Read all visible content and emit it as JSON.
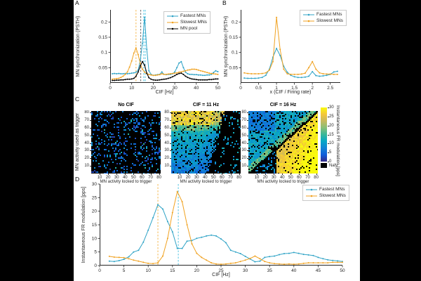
{
  "page_bg": "#000000",
  "figure_bg": "#ffffff",
  "colors": {
    "teal": "#2FA3C6",
    "orange": "#F0A221",
    "pool_black": "#000000",
    "dash_teal": "#55C6E4",
    "dash_orange": "#F6BA55",
    "dash_gray": "#666666",
    "axis": "#262626"
  },
  "colormap": {
    "name": "parula",
    "stops": [
      "#352A87",
      "#0E5CDB",
      "#1283D4",
      "#06A7C6",
      "#38B799",
      "#87BF77",
      "#C7BA5D",
      "#F4C63A",
      "#F9FB0E"
    ]
  },
  "panels": {
    "a": {
      "label": "A"
    },
    "b": {
      "label": "B"
    },
    "c": {
      "label": "C"
    },
    "d": {
      "label": "D"
    }
  },
  "chart_data": [
    {
      "id": "A",
      "type": "line",
      "xlabel": "CIF [Hz]",
      "ylabel": "MN synchronization (PSTH)",
      "xlim": [
        0,
        50.5
      ],
      "ylim": [
        0,
        0.24
      ],
      "xticks": [
        0,
        10,
        20,
        30,
        40,
        50
      ],
      "xtick_labels": [
        "0",
        "10",
        "20",
        "30",
        "40",
        "50"
      ],
      "yticks": [
        0.05,
        0.1,
        0.15,
        0.2
      ],
      "ytick_labels": [
        "0.05",
        "0.1",
        "0.15",
        "0.2"
      ],
      "legend_position": "top-right",
      "vlines": [
        {
          "x": 12,
          "color": "dash_orange"
        },
        {
          "x": 14.2,
          "color": "dash_gray"
        },
        {
          "x": 15.6,
          "color": "dash_teal"
        },
        {
          "x": 16.3,
          "color": "dash_teal"
        }
      ],
      "series": [
        {
          "name": "Fastest MNs",
          "color": "teal",
          "x": [
            1,
            2,
            3,
            4,
            5,
            6,
            7,
            8,
            9,
            10,
            11,
            12,
            13,
            14,
            15,
            16,
            17,
            18,
            19,
            20,
            21,
            22,
            23,
            24,
            25,
            26,
            27,
            28,
            29,
            30,
            31,
            32,
            33,
            34,
            35,
            36,
            37,
            38,
            39,
            40,
            41,
            42,
            43,
            44,
            45,
            46,
            47,
            48,
            49,
            50
          ],
          "y": [
            0.03,
            0.031,
            0.03,
            0.031,
            0.03,
            0.03,
            0.031,
            0.03,
            0.031,
            0.032,
            0.033,
            0.035,
            0.042,
            0.075,
            0.13,
            0.215,
            0.11,
            0.04,
            0.028,
            0.025,
            0.026,
            0.027,
            0.028,
            0.036,
            0.028,
            0.027,
            0.028,
            0.028,
            0.03,
            0.036,
            0.05,
            0.065,
            0.07,
            0.05,
            0.035,
            0.03,
            0.028,
            0.028,
            0.027,
            0.027,
            0.026,
            0.026,
            0.025,
            0.025,
            0.026,
            0.026,
            0.028,
            0.034,
            0.04,
            0.037
          ]
        },
        {
          "name": "Slowest MNs",
          "color": "orange",
          "x": [
            1,
            2,
            3,
            4,
            5,
            6,
            7,
            8,
            9,
            10,
            11,
            12,
            13,
            14,
            15,
            16,
            17,
            18,
            19,
            20,
            21,
            22,
            23,
            24,
            25,
            26,
            27,
            28,
            29,
            30,
            31,
            32,
            33,
            34,
            35,
            36,
            37,
            38,
            39,
            40,
            41,
            42,
            43,
            44,
            45,
            46,
            47,
            48,
            49,
            50
          ],
          "y": [
            0.012,
            0.013,
            0.014,
            0.015,
            0.018,
            0.022,
            0.028,
            0.036,
            0.052,
            0.072,
            0.098,
            0.115,
            0.093,
            0.063,
            0.045,
            0.035,
            0.03,
            0.028,
            0.026,
            0.025,
            0.025,
            0.026,
            0.027,
            0.03,
            0.028,
            0.028,
            0.029,
            0.03,
            0.031,
            0.032,
            0.033,
            0.035,
            0.036,
            0.038,
            0.04,
            0.042,
            0.043,
            0.045,
            0.045,
            0.044,
            0.042,
            0.04,
            0.038,
            0.036,
            0.034,
            0.032,
            0.031,
            0.03,
            0.029,
            0.028
          ]
        },
        {
          "name": "MN pool",
          "color": "pool_black",
          "x": [
            1,
            2,
            3,
            4,
            5,
            6,
            7,
            8,
            9,
            10,
            11,
            12,
            13,
            14,
            15,
            16,
            17,
            18,
            19,
            20,
            21,
            22,
            23,
            24,
            25,
            26,
            27,
            28,
            29,
            30,
            31,
            32,
            33,
            34,
            35,
            36,
            37,
            38,
            39,
            40,
            41,
            42,
            43,
            44,
            45,
            46,
            47,
            48,
            49,
            50
          ],
          "y": [
            0.008,
            0.008,
            0.009,
            0.009,
            0.01,
            0.01,
            0.011,
            0.012,
            0.012,
            0.013,
            0.015,
            0.022,
            0.036,
            0.056,
            0.07,
            0.058,
            0.032,
            0.017,
            0.012,
            0.01,
            0.009,
            0.009,
            0.01,
            0.011,
            0.012,
            0.013,
            0.015,
            0.017,
            0.02,
            0.024,
            0.028,
            0.031,
            0.032,
            0.028,
            0.022,
            0.018,
            0.015,
            0.013,
            0.012,
            0.011,
            0.01,
            0.01,
            0.01,
            0.01,
            0.01,
            0.011,
            0.011,
            0.012,
            0.013,
            0.013
          ]
        }
      ]
    },
    {
      "id": "B",
      "type": "line",
      "xlabel": "x (CIF / Firing rate)",
      "ylabel": "MN synchronization (PSTH)",
      "xlim": [
        0,
        2.78
      ],
      "ylim": [
        0,
        0.24
      ],
      "xticks": [
        0,
        0.5,
        1,
        1.5,
        2,
        2.5
      ],
      "xtick_labels": [
        "0",
        "0.5",
        "1",
        "1.5",
        "2",
        "2.5"
      ],
      "yticks": [
        0.05,
        0.1,
        0.15,
        0.2
      ],
      "ytick_labels": [
        "0.05",
        "0.1",
        "0.15",
        "0.2"
      ],
      "legend_position": "top-right",
      "vlines": [],
      "series": [
        {
          "name": "Fastest MNs",
          "color": "teal",
          "x": [
            0.1,
            0.2,
            0.3,
            0.4,
            0.5,
            0.6,
            0.7,
            0.8,
            0.9,
            1.0,
            1.1,
            1.2,
            1.3,
            1.4,
            1.5,
            1.6,
            1.7,
            1.8,
            1.9,
            2.0,
            2.1,
            2.2,
            2.3,
            2.4,
            2.5,
            2.6,
            2.7
          ],
          "y": [
            0.016,
            0.015,
            0.015,
            0.015,
            0.016,
            0.018,
            0.025,
            0.045,
            0.085,
            0.113,
            0.09,
            0.055,
            0.035,
            0.025,
            0.02,
            0.018,
            0.018,
            0.019,
            0.022,
            0.037,
            0.024,
            0.022,
            0.023,
            0.025,
            0.028,
            0.036,
            0.038
          ]
        },
        {
          "name": "Slowest MNs",
          "color": "orange",
          "x": [
            0.1,
            0.2,
            0.3,
            0.4,
            0.5,
            0.6,
            0.7,
            0.8,
            0.9,
            1.0,
            1.1,
            1.2,
            1.3,
            1.4,
            1.5,
            1.6,
            1.7,
            1.8,
            1.9,
            2.0,
            2.1,
            2.2,
            2.3,
            2.4,
            2.5,
            2.6,
            2.7
          ],
          "y": [
            0.033,
            0.031,
            0.03,
            0.03,
            0.03,
            0.031,
            0.033,
            0.042,
            0.07,
            0.215,
            0.11,
            0.045,
            0.03,
            0.028,
            0.028,
            0.028,
            0.029,
            0.032,
            0.05,
            0.07,
            0.045,
            0.033,
            0.03,
            0.029,
            0.029,
            0.028,
            0.028
          ]
        }
      ]
    },
    {
      "id": "C",
      "type": "heatmap",
      "ylabel": "MN activity used as trigger",
      "xlabel": "MN activity locked to trigger",
      "axis_range": [
        0,
        82
      ],
      "xticks": [
        10,
        20,
        30,
        40,
        50,
        60,
        70,
        80
      ],
      "yticks": [
        10,
        20,
        30,
        40,
        50,
        60,
        70,
        80
      ],
      "heatmaps": [
        {
          "title": "No CIF",
          "pattern": "sparse-random",
          "summary": "mostly NaN (black) with sparse low-value blue pixels"
        },
        {
          "title": "CIF = 11 Hz",
          "pattern": "cif-11",
          "summary": "high (yellow) modulation for trigger units 60-80, teal for lower units, black for locked units above ~50"
        },
        {
          "title": "CIF = 16 Hz",
          "pattern": "cif-16",
          "summary": "NaN diagonal; strong yellow modulation below diagonal for locked units above ~35; teal above diagonal"
        }
      ],
      "colorbar": {
        "label": "Instantaneous FR modulation [pps]",
        "range": [
          0,
          30
        ],
        "ticks": [
          0,
          5,
          10,
          15,
          20,
          25,
          30
        ],
        "nan_label": "NaN"
      }
    },
    {
      "id": "D",
      "type": "line",
      "xlabel": "CIF [Hz]",
      "ylabel": "Instantaneous FR modulation [pps]",
      "xlim": [
        0,
        50
      ],
      "ylim": [
        0,
        30
      ],
      "xticks": [
        0,
        5,
        10,
        15,
        20,
        25,
        30,
        35,
        40,
        45,
        50
      ],
      "xtick_labels": [
        "0",
        "5",
        "10",
        "15",
        "20",
        "25",
        "30",
        "35",
        "40",
        "45",
        "50"
      ],
      "yticks": [
        0,
        5,
        10,
        15,
        20,
        25,
        30
      ],
      "ytick_labels": [
        "0",
        "5",
        "10",
        "15",
        "20",
        "25",
        "30"
      ],
      "legend_position": "top-right",
      "vlines": [
        {
          "x": 12,
          "color": "dash_orange"
        },
        {
          "x": 16.2,
          "color": "dash_teal"
        }
      ],
      "series": [
        {
          "name": "Fastest MNs",
          "color": "teal",
          "x": [
            2,
            3,
            4,
            5,
            6,
            7,
            8,
            9,
            10,
            11,
            12,
            13,
            14,
            15,
            16,
            17,
            18,
            19,
            20,
            21,
            22,
            23,
            24,
            25,
            26,
            27,
            28,
            29,
            30,
            31,
            32,
            33,
            34,
            35,
            36,
            37,
            38,
            39,
            40,
            41,
            42,
            43,
            44,
            45,
            46,
            47,
            48,
            49,
            50
          ],
          "y": [
            1.6,
            1.5,
            1.8,
            2.3,
            3.2,
            5.0,
            5.6,
            8.6,
            13.0,
            17.6,
            22.4,
            20.8,
            16.2,
            12.4,
            6.3,
            6.3,
            9.0,
            9.2,
            10.0,
            10.4,
            10.9,
            11.2,
            10.9,
            9.8,
            8.4,
            5.6,
            5.0,
            4.4,
            3.4,
            2.4,
            1.4,
            1.6,
            3.0,
            3.3,
            3.5,
            4.0,
            4.4,
            4.5,
            4.8,
            4.5,
            4.1,
            3.9,
            3.7,
            3.0,
            2.5,
            2.1,
            1.9,
            1.7,
            1.5
          ]
        },
        {
          "name": "Slowest MNs",
          "color": "orange",
          "x": [
            2,
            3,
            4,
            5,
            6,
            7,
            8,
            9,
            10,
            11,
            12,
            13,
            14,
            15,
            16,
            17,
            18,
            19,
            20,
            21,
            22,
            23,
            24,
            25,
            26,
            27,
            28,
            29,
            30,
            31,
            32,
            33,
            34,
            35,
            36,
            37,
            38,
            39,
            40,
            41,
            42,
            43,
            44,
            45,
            46,
            47,
            48,
            49,
            50
          ],
          "y": [
            3.4,
            3.1,
            3.0,
            2.9,
            2.5,
            2.0,
            1.6,
            1.2,
            0.8,
            0.7,
            1.0,
            3.5,
            10.0,
            19.5,
            27.2,
            23.5,
            15.0,
            8.0,
            4.5,
            3.0,
            2.0,
            1.0,
            0.6,
            0.5,
            0.6,
            0.8,
            1.0,
            1.5,
            2.0,
            2.6,
            3.5,
            2.5,
            1.5,
            1.0,
            0.7,
            0.6,
            0.5,
            0.6,
            0.5,
            0.6,
            0.8,
            1.0,
            1.0,
            1.0,
            1.0,
            1.0,
            1.2,
            1.2,
            1.2
          ]
        }
      ]
    }
  ]
}
